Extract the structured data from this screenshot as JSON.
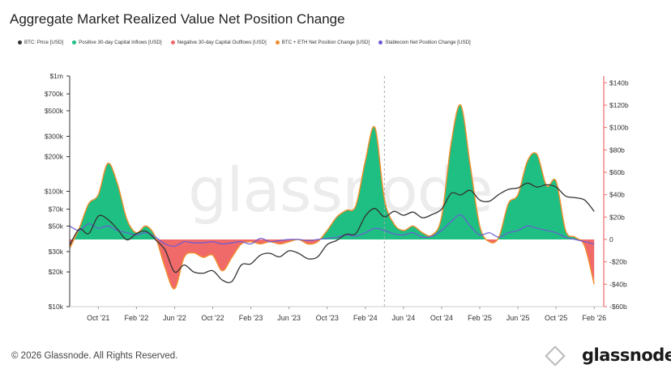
{
  "title": "Aggregate Market Realized Value Net Position Change",
  "legend": [
    {
      "label": "BTC: Price [USD]",
      "color": "#333333"
    },
    {
      "label": "Positive 30-day Capital Inflows [USD]",
      "color": "#1fbf83"
    },
    {
      "label": "Negative 30-day Capital Outflows [USD]",
      "color": "#f06a6a"
    },
    {
      "label": "BTC + ETH Net Position Change [USD]",
      "color": "#f28c28"
    },
    {
      "label": "Stablecoin Net Position Change [USD]",
      "color": "#6b5bd6"
    }
  ],
  "footer": "© 2026 Glassnode. All Rights Reserved.",
  "brand": "glassnode",
  "watermark": "glassnode",
  "colors": {
    "price": "#333333",
    "positive": "#1fbf83",
    "negative": "#f06a6a",
    "netchange": "#f28c28",
    "stablecoin": "#6b5bd6",
    "right_axis": "#f06a6a",
    "event_line": "#aaaaaa"
  },
  "chart_data": {
    "type": "area",
    "title": "Aggregate Market Realized Value Net Position Change",
    "x_tick_labels": [
      "Oct '21",
      "Feb '22",
      "Jun '22",
      "Oct '22",
      "Feb '23",
      "Jun '23",
      "Oct '23",
      "Feb '24",
      "Jun '24",
      "Oct '24",
      "Feb '25",
      "Jun '25",
      "Oct '25",
      "Feb '26"
    ],
    "x_range": [
      "2021-07",
      "2026-03"
    ],
    "left_axis": {
      "scale": "log",
      "ticks": [
        10000,
        20000,
        30000,
        50000,
        70000,
        100000,
        200000,
        300000,
        500000,
        700000,
        1000000
      ],
      "tick_labels": [
        "$10k",
        "$20k",
        "$30k",
        "$50k",
        "$70k",
        "$100k",
        "$200k",
        "$300k",
        "$500k",
        "$700k",
        "$1m"
      ],
      "range": [
        10000,
        1000000
      ]
    },
    "right_axis": {
      "scale": "linear",
      "ticks": [
        -60,
        -40,
        -20,
        0,
        20,
        40,
        60,
        80,
        100,
        120,
        140
      ],
      "tick_labels": [
        "-$60b",
        "-$40b",
        "-$20b",
        "0",
        "$20b",
        "$40b",
        "$60b",
        "$80b",
        "$100b",
        "$120b",
        "$140b"
      ],
      "range": [
        -60,
        146
      ],
      "unit": "billion USD"
    },
    "event_marker": {
      "date": "2024-04",
      "style": "dashed vertical line"
    },
    "series": [
      {
        "name": "BTC: Price [USD]",
        "axis": "left",
        "points": [
          [
            "2021-07",
            34000
          ],
          [
            "2021-08",
            47000
          ],
          [
            "2021-09",
            43000
          ],
          [
            "2021-10",
            61000
          ],
          [
            "2021-11",
            57000
          ],
          [
            "2021-12",
            47000
          ],
          [
            "2022-01",
            38000
          ],
          [
            "2022-02",
            43000
          ],
          [
            "2022-03",
            45000
          ],
          [
            "2022-04",
            38000
          ],
          [
            "2022-05",
            31000
          ],
          [
            "2022-06",
            20000
          ],
          [
            "2022-07",
            23000
          ],
          [
            "2022-08",
            20000
          ],
          [
            "2022-09",
            19500
          ],
          [
            "2022-10",
            20500
          ],
          [
            "2022-11",
            17000
          ],
          [
            "2022-12",
            16500
          ],
          [
            "2023-01",
            23000
          ],
          [
            "2023-02",
            23500
          ],
          [
            "2023-03",
            28000
          ],
          [
            "2023-04",
            29000
          ],
          [
            "2023-05",
            27000
          ],
          [
            "2023-06",
            30500
          ],
          [
            "2023-07",
            29000
          ],
          [
            "2023-08",
            26000
          ],
          [
            "2023-09",
            27000
          ],
          [
            "2023-10",
            34500
          ],
          [
            "2023-11",
            37500
          ],
          [
            "2023-12",
            42500
          ],
          [
            "2024-01",
            43000
          ],
          [
            "2024-02",
            61000
          ],
          [
            "2024-03",
            71000
          ],
          [
            "2024-04",
            60000
          ],
          [
            "2024-05",
            67000
          ],
          [
            "2024-06",
            62000
          ],
          [
            "2024-07",
            66000
          ],
          [
            "2024-08",
            59000
          ],
          [
            "2024-09",
            63000
          ],
          [
            "2024-10",
            70000
          ],
          [
            "2024-11",
            96000
          ],
          [
            "2024-12",
            93000
          ],
          [
            "2025-01",
            102000
          ],
          [
            "2025-02",
            84000
          ],
          [
            "2025-03",
            82000
          ],
          [
            "2025-04",
            94000
          ],
          [
            "2025-05",
            104000
          ],
          [
            "2025-06",
            107000
          ],
          [
            "2025-07",
            118000
          ],
          [
            "2025-08",
            109000
          ],
          [
            "2025-09",
            114000
          ],
          [
            "2025-10",
            109000
          ],
          [
            "2025-11",
            91000
          ],
          [
            "2025-12",
            88000
          ],
          [
            "2026-01",
            84000
          ],
          [
            "2026-02",
            67000
          ]
        ]
      },
      {
        "name": "BTC + ETH Net Position Change [USD]",
        "axis": "right",
        "points": [
          [
            "2021-07",
            -8
          ],
          [
            "2021-08",
            10
          ],
          [
            "2021-09",
            32
          ],
          [
            "2021-10",
            40
          ],
          [
            "2021-11",
            68
          ],
          [
            "2021-12",
            50
          ],
          [
            "2022-01",
            18
          ],
          [
            "2022-02",
            6
          ],
          [
            "2022-03",
            12
          ],
          [
            "2022-04",
            2
          ],
          [
            "2022-05",
            -25
          ],
          [
            "2022-06",
            -44
          ],
          [
            "2022-07",
            -16
          ],
          [
            "2022-08",
            -12
          ],
          [
            "2022-09",
            -16
          ],
          [
            "2022-10",
            -14
          ],
          [
            "2022-11",
            -28
          ],
          [
            "2022-12",
            -16
          ],
          [
            "2023-01",
            -4
          ],
          [
            "2023-02",
            -2
          ],
          [
            "2023-03",
            -4
          ],
          [
            "2023-04",
            -2
          ],
          [
            "2023-05",
            -4
          ],
          [
            "2023-06",
            -2
          ],
          [
            "2023-07",
            0
          ],
          [
            "2023-08",
            -4
          ],
          [
            "2023-09",
            -2
          ],
          [
            "2023-10",
            8
          ],
          [
            "2023-11",
            20
          ],
          [
            "2023-12",
            26
          ],
          [
            "2024-01",
            30
          ],
          [
            "2024-02",
            70
          ],
          [
            "2024-03",
            100
          ],
          [
            "2024-04",
            36
          ],
          [
            "2024-05",
            14
          ],
          [
            "2024-06",
            8
          ],
          [
            "2024-07",
            12
          ],
          [
            "2024-08",
            6
          ],
          [
            "2024-09",
            4
          ],
          [
            "2024-10",
            20
          ],
          [
            "2024-11",
            86
          ],
          [
            "2024-12",
            120
          ],
          [
            "2025-01",
            66
          ],
          [
            "2025-02",
            12
          ],
          [
            "2025-03",
            -2
          ],
          [
            "2025-04",
            2
          ],
          [
            "2025-05",
            32
          ],
          [
            "2025-06",
            40
          ],
          [
            "2025-07",
            70
          ],
          [
            "2025-08",
            76
          ],
          [
            "2025-09",
            48
          ],
          [
            "2025-10",
            52
          ],
          [
            "2025-11",
            8
          ],
          [
            "2025-12",
            2
          ],
          [
            "2026-01",
            -6
          ],
          [
            "2026-02",
            -40
          ]
        ]
      },
      {
        "name": "Stablecoin Net Position Change [USD]",
        "axis": "right",
        "points": [
          [
            "2021-07",
            12
          ],
          [
            "2021-08",
            8
          ],
          [
            "2021-09",
            14
          ],
          [
            "2021-10",
            10
          ],
          [
            "2021-11",
            12
          ],
          [
            "2021-12",
            8
          ],
          [
            "2022-01",
            6
          ],
          [
            "2022-02",
            4
          ],
          [
            "2022-03",
            6
          ],
          [
            "2022-04",
            2
          ],
          [
            "2022-05",
            -4
          ],
          [
            "2022-06",
            -6
          ],
          [
            "2022-07",
            -2
          ],
          [
            "2022-08",
            -3
          ],
          [
            "2022-09",
            -3
          ],
          [
            "2022-10",
            -2
          ],
          [
            "2022-11",
            -4
          ],
          [
            "2022-12",
            -3
          ],
          [
            "2023-01",
            -2
          ],
          [
            "2023-02",
            -4
          ],
          [
            "2023-03",
            1
          ],
          [
            "2023-04",
            -2
          ],
          [
            "2023-05",
            -1
          ],
          [
            "2023-06",
            0
          ],
          [
            "2023-07",
            0
          ],
          [
            "2023-08",
            -1
          ],
          [
            "2023-09",
            0
          ],
          [
            "2023-10",
            1
          ],
          [
            "2023-11",
            2
          ],
          [
            "2023-12",
            4
          ],
          [
            "2024-01",
            3
          ],
          [
            "2024-02",
            6
          ],
          [
            "2024-03",
            10
          ],
          [
            "2024-04",
            8
          ],
          [
            "2024-05",
            5
          ],
          [
            "2024-06",
            4
          ],
          [
            "2024-07",
            6
          ],
          [
            "2024-08",
            2
          ],
          [
            "2024-09",
            3
          ],
          [
            "2024-10",
            8
          ],
          [
            "2024-11",
            16
          ],
          [
            "2024-12",
            22
          ],
          [
            "2025-01",
            12
          ],
          [
            "2025-02",
            4
          ],
          [
            "2025-03",
            6
          ],
          [
            "2025-04",
            2
          ],
          [
            "2025-05",
            6
          ],
          [
            "2025-06",
            8
          ],
          [
            "2025-07",
            12
          ],
          [
            "2025-08",
            10
          ],
          [
            "2025-09",
            8
          ],
          [
            "2025-10",
            6
          ],
          [
            "2025-11",
            2
          ],
          [
            "2025-12",
            0
          ],
          [
            "2026-01",
            -2
          ],
          [
            "2026-02",
            -4
          ]
        ]
      }
    ],
    "derived_areas": [
      {
        "name": "Positive 30-day Capital Inflows [USD]",
        "source": "BTC + ETH Net Position Change [USD]",
        "fill": "values above 0"
      },
      {
        "name": "Negative 30-day Capital Outflows [USD]",
        "source": "BTC + ETH Net Position Change [USD]",
        "fill": "values below 0"
      }
    ],
    "grid": false,
    "legend_position": "top-left"
  }
}
